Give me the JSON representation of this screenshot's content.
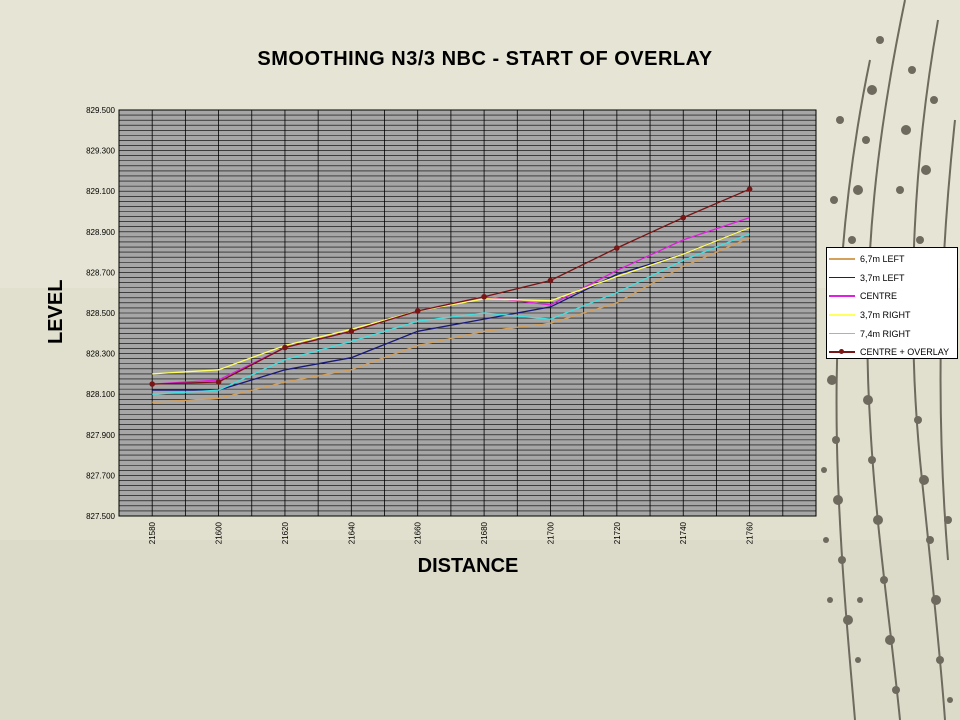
{
  "colors": {
    "background": "#e6e4d4",
    "plot_area": "#a6a6a6",
    "gridline": "#000000",
    "branch": "#6e6b5e"
  },
  "chart_data": {
    "type": "line",
    "title": "SMOOTHING N3/3 NBC - START OF OVERLAY",
    "xlabel": "DISTANCE",
    "ylabel": "LEVEL",
    "x": [
      21580,
      21600,
      21620,
      21640,
      21660,
      21680,
      21700,
      21720,
      21740,
      21760
    ],
    "x_ticks": [
      "21580",
      "21600",
      "21620",
      "21640",
      "21660",
      "21680",
      "21700",
      "21720",
      "21740",
      "21760"
    ],
    "y_ticks": [
      "827.500",
      "827.700",
      "827.900",
      "828.100",
      "828.300",
      "828.500",
      "828.700",
      "828.900",
      "829.100",
      "829.300",
      "829.500"
    ],
    "xlim": [
      21570,
      21780
    ],
    "ylim": [
      827.5,
      829.5
    ],
    "grid": true,
    "legend_position": "right",
    "series": [
      {
        "name": "6,7m LEFT",
        "color": "#d4a05a",
        "marker": false,
        "values": [
          828.06,
          828.08,
          828.16,
          828.22,
          828.34,
          828.41,
          828.45,
          828.55,
          828.73,
          828.87
        ]
      },
      {
        "name": "3,7m LEFT",
        "color": "#1a1a7a",
        "marker": false,
        "values": [
          828.12,
          828.12,
          828.22,
          828.28,
          828.41,
          828.47,
          828.53,
          828.69,
          828.79,
          828.92
        ]
      },
      {
        "name": "CENTRE",
        "color": "#e020e0",
        "marker": false,
        "values": [
          828.15,
          828.17,
          828.33,
          828.41,
          828.51,
          828.58,
          828.54,
          828.71,
          828.86,
          828.97
        ]
      },
      {
        "name": "3,7m RIGHT",
        "color": "#ffff60",
        "marker": false,
        "values": [
          828.2,
          828.22,
          828.34,
          828.42,
          828.51,
          828.57,
          828.56,
          828.68,
          828.79,
          828.92
        ]
      },
      {
        "name": "7,4m RIGHT",
        "color": "#40e0e0",
        "marker": false,
        "values": [
          828.1,
          828.12,
          828.27,
          828.36,
          828.46,
          828.5,
          828.47,
          828.6,
          828.76,
          828.89
        ]
      },
      {
        "name": "CENTRE + OVERLAY",
        "color": "#7a1515",
        "marker": true,
        "values": [
          828.15,
          828.16,
          828.33,
          828.41,
          828.51,
          828.58,
          828.66,
          828.82,
          828.97,
          829.11
        ]
      }
    ]
  }
}
